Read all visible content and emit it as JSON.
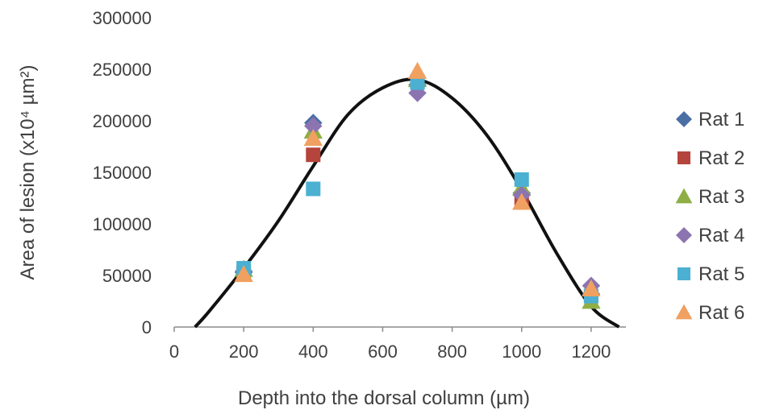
{
  "chart_data": {
    "type": "scatter",
    "title": "",
    "xlabel": "Depth into the dorsal column (µm)",
    "ylabel": "Area of lesion (x10⁴ µm²)",
    "xlim": [
      0,
      1300
    ],
    "ylim": [
      0,
      300000
    ],
    "xticks": [
      "0",
      "200",
      "400",
      "600",
      "800",
      "1000",
      "1200"
    ],
    "yticks": [
      "0",
      "50000",
      "100000",
      "150000",
      "200000",
      "250000",
      "300000"
    ],
    "grid": false,
    "legend_position": "right",
    "series": [
      {
        "name": "Rat 1",
        "marker": "diamond",
        "color": "#4a6fa5",
        "x": [
          200,
          400,
          700,
          1000,
          1200
        ],
        "y": [
          53000,
          198000,
          235000,
          130000,
          32000
        ]
      },
      {
        "name": "Rat 2",
        "marker": "square",
        "color": "#b5443c",
        "x": [
          200,
          400,
          700,
          1000,
          1200
        ],
        "y": [
          52000,
          167000,
          238000,
          125000,
          30000
        ]
      },
      {
        "name": "Rat 3",
        "marker": "triangle",
        "color": "#8fae45",
        "x": [
          200,
          400,
          700,
          1000,
          1200
        ],
        "y": [
          56000,
          190000,
          240000,
          135000,
          25000
        ]
      },
      {
        "name": "Rat 4",
        "marker": "diamond",
        "color": "#8b74b0",
        "x": [
          200,
          400,
          700,
          1000,
          1200
        ],
        "y": [
          54000,
          195000,
          227000,
          128000,
          40000
        ]
      },
      {
        "name": "Rat 5",
        "marker": "square",
        "color": "#4bb0d2",
        "x": [
          200,
          400,
          700,
          1000,
          1200
        ],
        "y": [
          57000,
          134000,
          237000,
          143000,
          30000
        ]
      },
      {
        "name": "Rat 6",
        "marker": "triangle",
        "color": "#f0a060",
        "x": [
          200,
          400,
          700,
          1000,
          1200
        ],
        "y": [
          51000,
          183000,
          248000,
          121000,
          37000
        ]
      }
    ],
    "trendline": {
      "color": "#111111",
      "x": [
        60,
        100,
        200,
        300,
        400,
        500,
        600,
        700,
        800,
        900,
        1000,
        1100,
        1200,
        1280
      ],
      "y": [
        0,
        15000,
        57000,
        103000,
        156000,
        206000,
        232000,
        240000,
        222000,
        186000,
        133000,
        72000,
        20000,
        0
      ]
    }
  }
}
